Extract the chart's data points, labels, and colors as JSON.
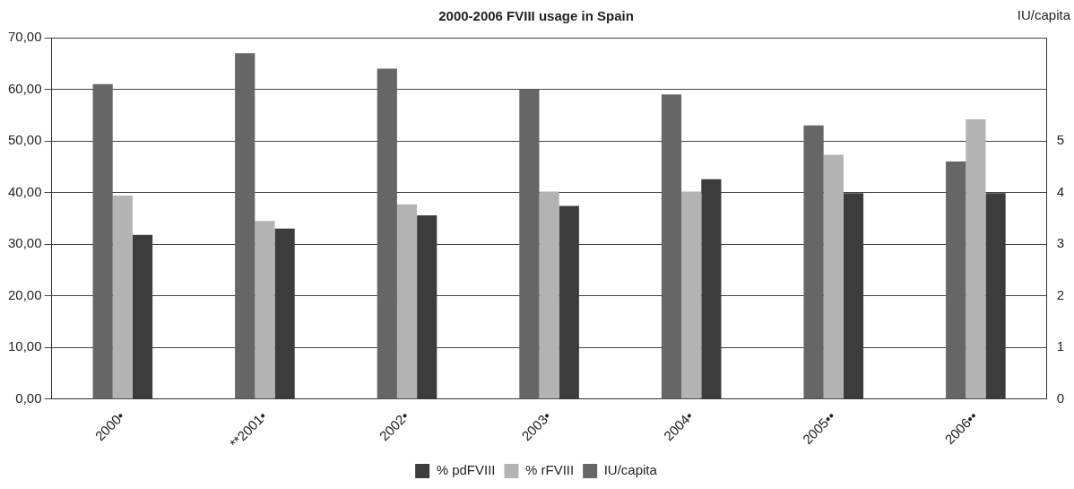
{
  "chart_data": {
    "type": "bar",
    "title": "2000-2006 FVIII usage in Spain",
    "y2label": "IU/capita",
    "categories": [
      "2000•",
      "**2001•",
      "2002•",
      "2003•",
      "2004•",
      "2005••",
      "2006••"
    ],
    "series": [
      {
        "name": "IU/capita",
        "color": "#666666",
        "axis": "y2",
        "values": [
          6.1,
          6.7,
          6.4,
          6.0,
          5.9,
          5.3,
          4.6
        ]
      },
      {
        "name": "% rFVIII",
        "color": "#b3b3b3",
        "values": [
          39.4,
          34.5,
          37.7,
          40.2,
          40.2,
          47.3,
          54.2
        ]
      },
      {
        "name": "% pdFVIII",
        "color": "#3c3c3c",
        "values": [
          31.8,
          33.0,
          35.6,
          37.4,
          42.6,
          39.9,
          39.9
        ]
      }
    ],
    "ylim": [
      0,
      70
    ],
    "yticks": [
      {
        "value": 0,
        "label": "0,00"
      },
      {
        "value": 10,
        "label": "10,00"
      },
      {
        "value": 20,
        "label": "20,00"
      },
      {
        "value": 30,
        "label": "30,00"
      },
      {
        "value": 40,
        "label": "40,00"
      },
      {
        "value": 50,
        "label": "50,00"
      },
      {
        "value": 60,
        "label": "60,00"
      },
      {
        "value": 70,
        "label": "70,00"
      }
    ],
    "y2lim": [
      0,
      7
    ],
    "y2ticks": [
      0,
      1,
      2,
      3,
      4,
      5
    ],
    "grid": "y",
    "legend": "bottom"
  }
}
